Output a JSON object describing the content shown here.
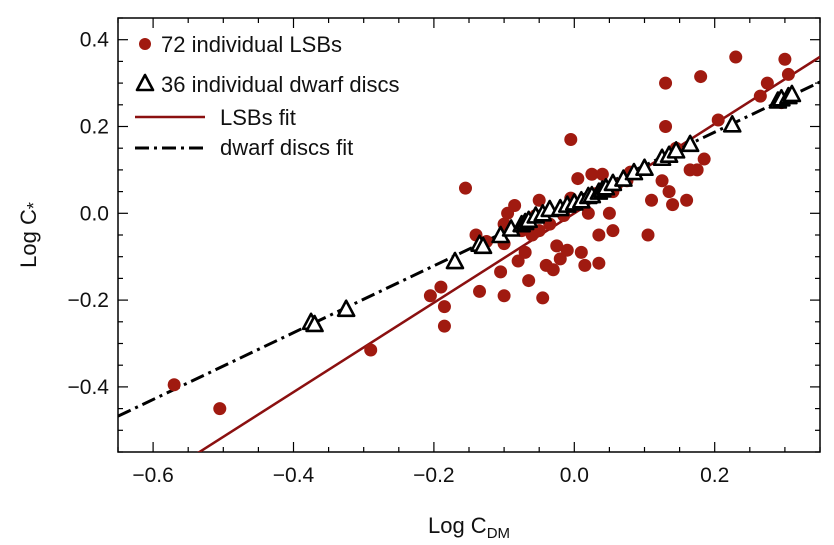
{
  "chart_data": {
    "type": "scatter",
    "xlabel": "Log C",
    "xlabel_sub": "DM",
    "ylabel": "Log C",
    "ylabel_sub": "*",
    "xlim": [
      -0.65,
      0.35
    ],
    "ylim": [
      -0.55,
      0.45
    ],
    "x_ticks": [
      -0.6,
      -0.4,
      -0.2,
      0.0,
      0.2
    ],
    "x_tick_labels": [
      "−0.6",
      "−0.4",
      "−0.2",
      "0.0",
      "0.2"
    ],
    "y_ticks": [
      -0.4,
      -0.2,
      0.0,
      0.2,
      0.4
    ],
    "y_tick_labels": [
      "−0.4",
      "−0.2",
      "0.0",
      "0.2",
      "0.4"
    ],
    "legend_position": "top-left",
    "colors": {
      "lsb": "#a01a10",
      "lsb_fit": "#8b1010",
      "dwarf": "#000000"
    },
    "series": [
      {
        "name": "LSBs",
        "legend": "72 individual LSBs",
        "marker": "circle",
        "points": [
          [
            -0.57,
            -0.395
          ],
          [
            -0.505,
            -0.45
          ],
          [
            -0.29,
            -0.315
          ],
          [
            -0.205,
            -0.19
          ],
          [
            -0.185,
            -0.215
          ],
          [
            -0.185,
            -0.26
          ],
          [
            -0.19,
            -0.17
          ],
          [
            -0.155,
            0.058
          ],
          [
            -0.14,
            -0.05
          ],
          [
            -0.135,
            -0.18
          ],
          [
            -0.125,
            -0.065
          ],
          [
            -0.105,
            -0.135
          ],
          [
            -0.1,
            -0.19
          ],
          [
            -0.1,
            -0.07
          ],
          [
            -0.1,
            -0.025
          ],
          [
            -0.095,
            0.0
          ],
          [
            -0.085,
            0.018
          ],
          [
            -0.08,
            -0.11
          ],
          [
            -0.075,
            -0.04
          ],
          [
            -0.07,
            -0.09
          ],
          [
            -0.065,
            -0.155
          ],
          [
            -0.06,
            -0.05
          ],
          [
            -0.055,
            -0.005
          ],
          [
            -0.05,
            0.03
          ],
          [
            -0.05,
            -0.04
          ],
          [
            -0.045,
            -0.195
          ],
          [
            -0.04,
            -0.12
          ],
          [
            -0.035,
            -0.025
          ],
          [
            -0.03,
            -0.13
          ],
          [
            -0.025,
            -0.075
          ],
          [
            -0.02,
            -0.105
          ],
          [
            -0.015,
            -0.005
          ],
          [
            -0.01,
            -0.085
          ],
          [
            -0.005,
            0.035
          ],
          [
            -0.005,
            0.17
          ],
          [
            0.0,
            0.02
          ],
          [
            0.005,
            0.08
          ],
          [
            0.01,
            -0.09
          ],
          [
            0.015,
            -0.12
          ],
          [
            0.02,
            0.0
          ],
          [
            0.025,
            0.09
          ],
          [
            0.03,
            0.045
          ],
          [
            0.035,
            -0.05
          ],
          [
            0.035,
            -0.115
          ],
          [
            0.04,
            0.09
          ],
          [
            0.045,
            0.06
          ],
          [
            0.05,
            0.0
          ],
          [
            0.055,
            0.05
          ],
          [
            0.055,
            -0.04
          ],
          [
            0.06,
            0.065
          ],
          [
            0.075,
            0.075
          ],
          [
            0.08,
            0.095
          ],
          [
            0.105,
            -0.05
          ],
          [
            0.11,
            0.03
          ],
          [
            0.125,
            0.075
          ],
          [
            0.13,
            0.3
          ],
          [
            0.13,
            0.2
          ],
          [
            0.135,
            0.05
          ],
          [
            0.14,
            0.02
          ],
          [
            0.145,
            0.15
          ],
          [
            0.16,
            0.03
          ],
          [
            0.165,
            0.1
          ],
          [
            0.175,
            0.1
          ],
          [
            0.18,
            0.315
          ],
          [
            0.185,
            0.125
          ],
          [
            0.205,
            0.215
          ],
          [
            0.23,
            0.36
          ],
          [
            0.265,
            0.27
          ],
          [
            0.275,
            0.3
          ],
          [
            0.295,
            0.255
          ],
          [
            0.3,
            0.355
          ],
          [
            0.305,
            0.32
          ]
        ]
      },
      {
        "name": "dwarf discs",
        "legend": "36 individual dwarf discs",
        "marker": "triangle",
        "points": [
          [
            -0.375,
            -0.25
          ],
          [
            -0.37,
            -0.255
          ],
          [
            -0.325,
            -0.22
          ],
          [
            -0.17,
            -0.11
          ],
          [
            -0.135,
            -0.07
          ],
          [
            -0.13,
            -0.075
          ],
          [
            -0.105,
            -0.05
          ],
          [
            -0.09,
            -0.035
          ],
          [
            -0.075,
            -0.025
          ],
          [
            -0.07,
            -0.02
          ],
          [
            -0.065,
            -0.015
          ],
          [
            -0.055,
            -0.005
          ],
          [
            -0.045,
            0.0
          ],
          [
            -0.035,
            0.01
          ],
          [
            -0.02,
            0.012
          ],
          [
            -0.01,
            0.02
          ],
          [
            0.0,
            0.025
          ],
          [
            0.01,
            0.03
          ],
          [
            0.02,
            0.04
          ],
          [
            0.025,
            0.042
          ],
          [
            0.035,
            0.05
          ],
          [
            0.04,
            0.055
          ],
          [
            0.045,
            0.06
          ],
          [
            0.055,
            0.07
          ],
          [
            0.07,
            0.08
          ],
          [
            0.085,
            0.095
          ],
          [
            0.1,
            0.105
          ],
          [
            0.125,
            0.128
          ],
          [
            0.135,
            0.135
          ],
          [
            0.145,
            0.145
          ],
          [
            0.165,
            0.16
          ],
          [
            0.225,
            0.205
          ],
          [
            0.29,
            0.26
          ],
          [
            0.295,
            0.265
          ],
          [
            0.305,
            0.27
          ],
          [
            0.31,
            0.275
          ]
        ]
      }
    ],
    "fits": [
      {
        "name": "LSBs fit",
        "legend": "LSBs fit",
        "slope": 1.03,
        "intercept": 0.0,
        "style": "solid"
      },
      {
        "name": "dwarf discs fit",
        "legend": "dwarf discs fit",
        "slope": 0.77,
        "intercept": 0.033,
        "style": "dash-dot"
      }
    ]
  }
}
